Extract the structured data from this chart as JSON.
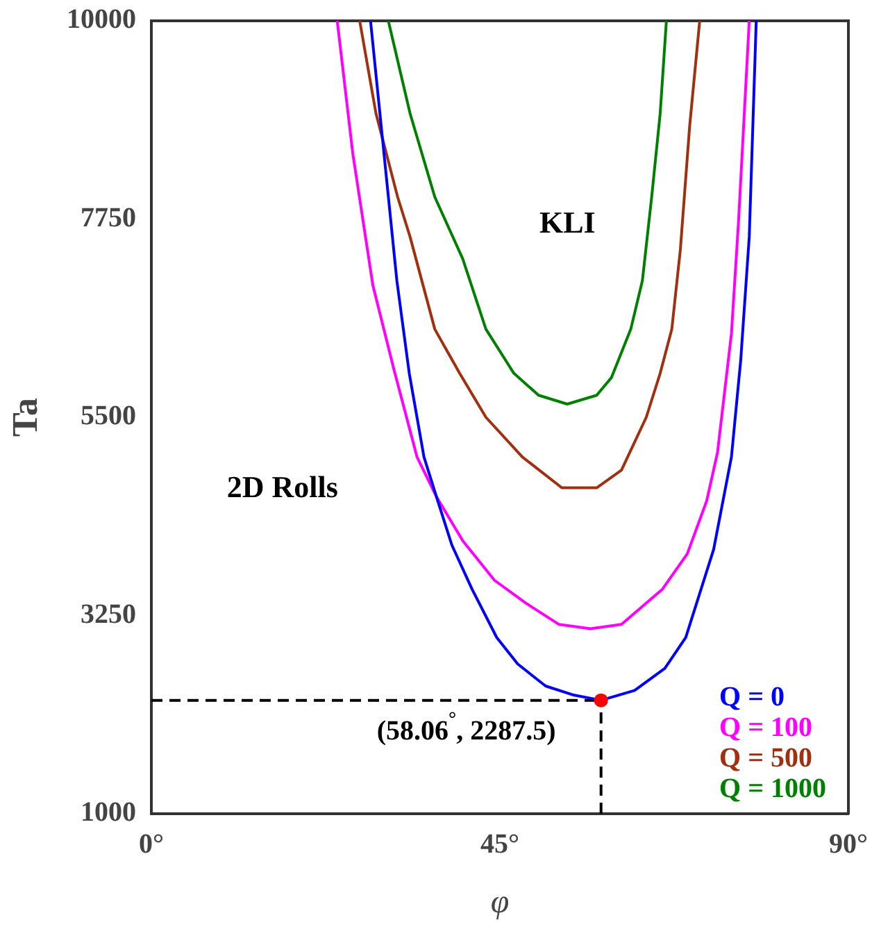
{
  "chart_data": {
    "type": "line",
    "xlabel": "φ",
    "ylabel": "Ta",
    "xlim": [
      0,
      90
    ],
    "ylim": [
      1000,
      10000
    ],
    "xticks": [
      {
        "value": 0,
        "label": "0°"
      },
      {
        "value": 45,
        "label": "45°"
      },
      {
        "value": 90,
        "label": "90°"
      }
    ],
    "yticks": [
      1000,
      3250,
      5500,
      7750,
      10000
    ],
    "grid": false,
    "legend": "bottom right",
    "marker": "none",
    "line_style": "solid",
    "series": [
      {
        "name": "Q = 0",
        "color": "#0000ff",
        "x": [
          28.3,
          31.7,
          33.3,
          35.2,
          36.8,
          38.8,
          41.4,
          44.6,
          47.3,
          50.9,
          54.4,
          58.06,
          62.4,
          66.3,
          69,
          72.6,
          74.9,
          76.1,
          77.2,
          78.1
        ],
        "values": [
          10000,
          7050,
          6000,
          5050,
          4600,
          4050,
          3550,
          3000,
          2700,
          2450,
          2350,
          2287.5,
          2400,
          2650,
          3000,
          4000,
          5050,
          6150,
          7550,
          10000
        ]
      },
      {
        "name": "Q = 100",
        "color": "#ff00ff",
        "x": [
          24,
          26,
          28.6,
          31.3,
          34.3,
          36.8,
          40.2,
          44.3,
          48.2,
          52.6,
          56.7,
          60.7,
          66,
          69.2,
          71.7,
          73.1,
          74.9,
          75.8,
          77.2
        ],
        "values": [
          10000,
          8500,
          7000,
          6050,
          5050,
          4600,
          4100,
          3650,
          3400,
          3150,
          3100,
          3150,
          3550,
          3950,
          4550,
          5100,
          6450,
          7700,
          10000
        ]
      },
      {
        "name": "Q = 500",
        "color": "#a0300f",
        "x": [
          26.9,
          29,
          31.8,
          33.4,
          36.6,
          39.8,
          43.2,
          47.9,
          53,
          55.3,
          57.5,
          60.7,
          63.9,
          65.7,
          67.2,
          68.3,
          69.5,
          70.8
        ],
        "values": [
          10000,
          8950,
          8000,
          7550,
          6500,
          6000,
          5500,
          5050,
          4700,
          4700,
          4700,
          4900,
          5500,
          6000,
          6500,
          7400,
          8800,
          10000
        ]
      },
      {
        "name": "Q = 1000",
        "color": "#008000",
        "x": [
          30.6,
          33.4,
          36.6,
          40.2,
          43.2,
          46.8,
          50,
          53.7,
          57.5,
          59.4,
          61.9,
          63.4,
          64.6,
          65.7,
          66.5
        ],
        "values": [
          10000,
          8950,
          8000,
          7300,
          6500,
          6000,
          5750,
          5650,
          5750,
          5950,
          6500,
          7050,
          8000,
          8950,
          10000
        ]
      },
      {
        "type": "scatter",
        "color": "#ff0000",
        "marker": "circle",
        "x": [
          58.06
        ],
        "values": [
          2287.5
        ]
      }
    ],
    "ref_lines": [
      {
        "axis": "y",
        "value": 2287.5,
        "color": "#000000",
        "line_style": "dashed"
      },
      {
        "axis": "x",
        "value": 58.06,
        "color": "#000000",
        "line_style": "dashed"
      }
    ],
    "annotations": [
      "KLI",
      "2D Rolls",
      {
        "text": "(58.06$^{°}$, 2287.5)",
        "x": 58.06,
        "y": 2287.5
      }
    ]
  }
}
